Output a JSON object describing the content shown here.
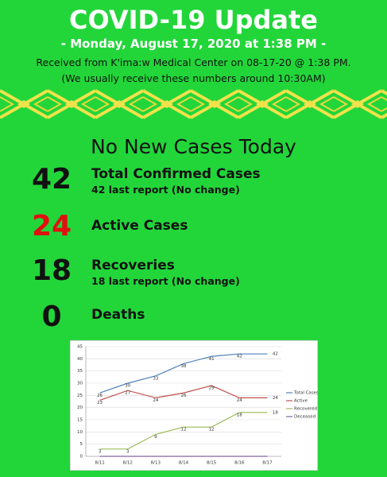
{
  "header": {
    "title": "COVID-19 Update",
    "date": "- Monday, August 17, 2020 at 1:38 PM -",
    "source": "Received from K'ima:w Medical Center on 08-17-20 @ 1:38 PM.",
    "note": "(We usually receive these numbers around 10:30AM)"
  },
  "headline": "No New Cases Today",
  "stats": [
    {
      "number": "42",
      "label": "Total Confirmed Cases",
      "note": "42 last report (No change)"
    },
    {
      "number": "24",
      "label": "Active Cases"
    },
    {
      "number": "18",
      "label": "Recoveries",
      "note": "18 last report (No change)"
    },
    {
      "number": "0",
      "label": "Deaths"
    }
  ],
  "chart_data": {
    "type": "line",
    "categories": [
      "8/11",
      "8/12",
      "8/13",
      "8/14",
      "8/15",
      "8/16",
      "8/17"
    ],
    "series": [
      {
        "name": "Total Cases",
        "color": "#4f81bd",
        "values": [
          26,
          30,
          33,
          38,
          41,
          42,
          42
        ],
        "labels": true
      },
      {
        "name": "Active",
        "color": "#c0504d",
        "values": [
          23,
          27,
          24,
          26,
          29,
          24,
          24
        ],
        "labels": true
      },
      {
        "name": "Recovered",
        "color": "#9bbb59",
        "values": [
          3,
          3,
          9,
          12,
          12,
          18,
          18
        ],
        "labels": true
      },
      {
        "name": "Deceased",
        "color": "#8064a2",
        "values": [
          0,
          0,
          0,
          0,
          0,
          0,
          0
        ],
        "labels": false
      }
    ],
    "ylim": [
      0,
      45
    ],
    "yticks": [
      0,
      5,
      10,
      15,
      20,
      25,
      30,
      35,
      40,
      45
    ],
    "grid": true,
    "legend": "right"
  }
}
